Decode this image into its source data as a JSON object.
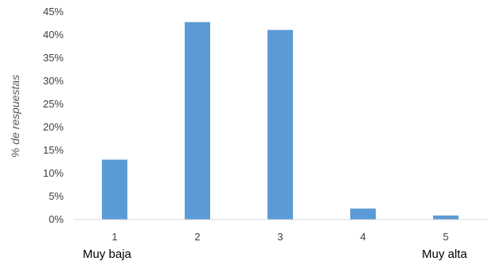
{
  "chart_data": {
    "type": "bar",
    "categories": [
      "1",
      "2",
      "3",
      "4",
      "5"
    ],
    "values": [
      13,
      42.8,
      41.1,
      2.4,
      0.9
    ],
    "title": "",
    "xlabel": "",
    "ylabel": "% de respuestas",
    "ylim": [
      0,
      45
    ],
    "yticks": [
      "0%",
      "5%",
      "10%",
      "15%",
      "20%",
      "25%",
      "30%",
      "35%",
      "40%",
      "45%"
    ],
    "grid": false,
    "bar_color": "#5B9BD5",
    "axis_color": "#D9D9D9",
    "scale_end_labels": {
      "low": "Muy baja",
      "high": "Muy alta"
    }
  }
}
